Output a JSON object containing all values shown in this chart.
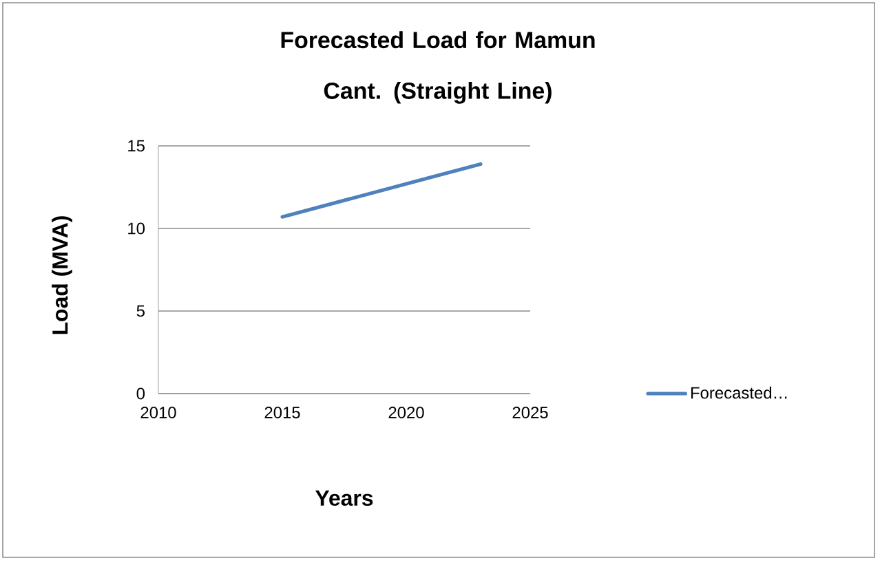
{
  "chart_data": {
    "type": "line",
    "title": "Forecasted Load for Mamun Cant. (Straight Line)",
    "xlabel": "Years",
    "ylabel": "Load (MVA)",
    "x": [
      2015,
      2023
    ],
    "series": [
      {
        "name": "Forecasted…",
        "color": "#4f81bd",
        "values": [
          10.7,
          13.9
        ]
      }
    ],
    "xlim": [
      2010,
      2025
    ],
    "ylim": [
      0,
      15
    ],
    "xticks": [
      2010,
      2015,
      2020,
      2025
    ],
    "yticks": [
      0,
      5,
      10,
      15
    ],
    "grid": "y",
    "legend": "right",
    "marker": "none",
    "line_style": "solid"
  }
}
